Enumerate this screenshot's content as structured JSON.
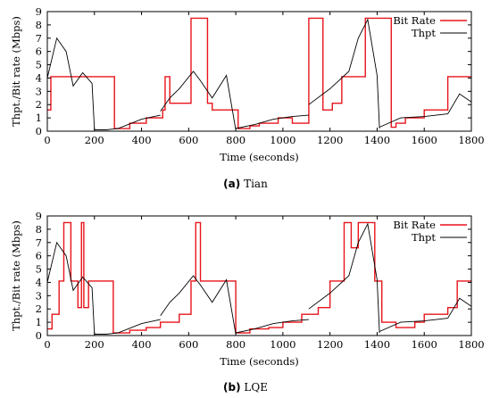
{
  "figure": {
    "captions": [
      {
        "letter": "(a)",
        "text": "Tian"
      },
      {
        "letter": "(b)",
        "text": "LQE"
      }
    ]
  },
  "chart_data": [
    {
      "type": "line",
      "xlabel": "Time (seconds)",
      "ylabel": "Thpt./Bit rate (Mbps)",
      "xlim": [
        0,
        1800
      ],
      "ylim": [
        0,
        9
      ],
      "xticks": [
        0,
        200,
        400,
        600,
        800,
        1000,
        1200,
        1400,
        1600,
        1800
      ],
      "yticks": [
        0,
        1,
        2,
        3,
        4,
        5,
        6,
        7,
        8,
        9
      ],
      "grid": false,
      "legend_position": "top-right",
      "series": [
        {
          "name": "Bit Rate",
          "color": "#e8141b",
          "step": true,
          "x": [
            0,
            15,
            285,
            350,
            420,
            490,
            500,
            520,
            610,
            680,
            700,
            810,
            860,
            900,
            980,
            1040,
            1110,
            1170,
            1210,
            1250,
            1350,
            1460,
            1480,
            1520,
            1600,
            1700,
            1720,
            1800
          ],
          "y": [
            1.6,
            4.1,
            0.2,
            0.6,
            1.0,
            1.6,
            4.1,
            2.1,
            8.5,
            2.1,
            1.6,
            0.2,
            0.4,
            0.6,
            1.0,
            0.6,
            8.5,
            1.6,
            2.1,
            4.1,
            8.5,
            0.3,
            0.6,
            1.0,
            1.6,
            4.1,
            4.1,
            4.1
          ]
        },
        {
          "name": "Thpt",
          "color": "#000000",
          "segments": [
            {
              "x": [
                0,
                40,
                80,
                110,
                150,
                190,
                200
              ],
              "y": [
                4,
                7,
                6,
                3.4,
                4.4,
                3.6,
                0.1
              ]
            },
            {
              "x": [
                200,
                250,
                300,
                400,
                480
              ],
              "y": [
                0.1,
                0.1,
                0.2,
                0.9,
                1.2
              ]
            },
            {
              "x": [
                480,
                520,
                560,
                620,
                650,
                700,
                760,
                800
              ],
              "y": [
                1.5,
                2.5,
                3.2,
                4.5,
                3.8,
                2.5,
                4.2,
                0.1
              ]
            },
            {
              "x": [
                800,
                880,
                960,
                1040,
                1110
              ],
              "y": [
                0.2,
                0.5,
                0.9,
                1.1,
                1.2
              ]
            },
            {
              "x": [
                1110,
                1200,
                1280,
                1320,
                1360,
                1400,
                1410
              ],
              "y": [
                2,
                3.2,
                4.5,
                7,
                8.4,
                4.2,
                0.2
              ]
            },
            {
              "x": [
                1410,
                1500,
                1600,
                1700,
                1750,
                1800
              ],
              "y": [
                0.3,
                1.0,
                1.1,
                1.3,
                2.8,
                2.2
              ]
            }
          ]
        }
      ]
    },
    {
      "type": "line",
      "xlabel": "Time (seconds)",
      "ylabel": "Thpt./Bit rate (Mbps)",
      "xlim": [
        0,
        1800
      ],
      "ylim": [
        0,
        9
      ],
      "xticks": [
        0,
        200,
        400,
        600,
        800,
        1000,
        1200,
        1400,
        1600,
        1800
      ],
      "yticks": [
        0,
        1,
        2,
        3,
        4,
        5,
        6,
        7,
        8,
        9
      ],
      "grid": false,
      "legend_position": "top-right",
      "series": [
        {
          "name": "Bit Rate",
          "color": "#e8141b",
          "step": true,
          "x": [
            0,
            20,
            50,
            70,
            100,
            130,
            145,
            155,
            175,
            280,
            350,
            420,
            480,
            560,
            610,
            630,
            650,
            800,
            860,
            940,
            1000,
            1080,
            1150,
            1200,
            1260,
            1290,
            1320,
            1350,
            1390,
            1420,
            1480,
            1560,
            1600,
            1700,
            1740,
            1800
          ],
          "y": [
            0.5,
            1.6,
            4.1,
            8.5,
            4.1,
            2.1,
            8.5,
            2.1,
            4.1,
            0.2,
            0.4,
            0.6,
            1.0,
            1.6,
            4.1,
            8.5,
            4.1,
            0.2,
            0.5,
            0.6,
            1.0,
            1.6,
            2.1,
            4.1,
            8.5,
            6.6,
            8.5,
            8.5,
            4.1,
            1.0,
            0.6,
            1.0,
            1.6,
            2.1,
            4.1,
            4.1
          ]
        },
        {
          "name": "Thpt",
          "color": "#000000",
          "segments": [
            {
              "x": [
                0,
                40,
                80,
                110,
                150,
                190,
                200
              ],
              "y": [
                4,
                7,
                6,
                3.4,
                4.4,
                3.6,
                0.1
              ]
            },
            {
              "x": [
                200,
                250,
                300,
                400,
                480
              ],
              "y": [
                0.1,
                0.1,
                0.2,
                0.9,
                1.2
              ]
            },
            {
              "x": [
                480,
                520,
                560,
                620,
                650,
                700,
                760,
                800
              ],
              "y": [
                1.5,
                2.5,
                3.2,
                4.5,
                3.8,
                2.5,
                4.2,
                0.1
              ]
            },
            {
              "x": [
                800,
                880,
                960,
                1040,
                1110
              ],
              "y": [
                0.2,
                0.5,
                0.9,
                1.1,
                1.2
              ]
            },
            {
              "x": [
                1110,
                1200,
                1280,
                1320,
                1360,
                1400,
                1410
              ],
              "y": [
                2,
                3.2,
                4.5,
                7,
                8.4,
                4.2,
                0.2
              ]
            },
            {
              "x": [
                1410,
                1500,
                1600,
                1700,
                1750,
                1800
              ],
              "y": [
                0.3,
                1.0,
                1.1,
                1.3,
                2.8,
                2.2
              ]
            }
          ]
        }
      ]
    }
  ]
}
